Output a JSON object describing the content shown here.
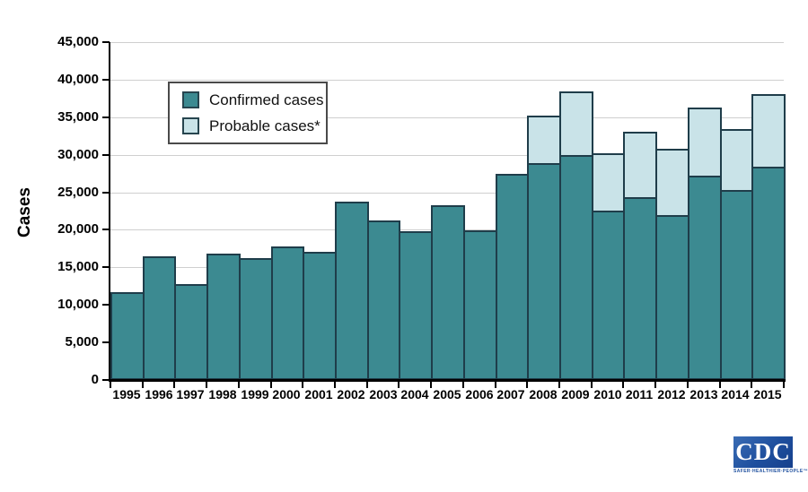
{
  "chart_data": {
    "type": "bar",
    "stacked": true,
    "title": "",
    "xlabel": "",
    "ylabel": "Cases",
    "ylim": [
      0,
      45000
    ],
    "ytick_interval": 5000,
    "ytick_labels": [
      "0",
      "5,000",
      "10,000",
      "15,000",
      "20,000",
      "25,000",
      "30,000",
      "35,000",
      "40,000",
      "45,000"
    ],
    "grid": true,
    "legend_position": "upper-left-inside",
    "categories": [
      "1995",
      "1996",
      "1997",
      "1998",
      "1999",
      "2000",
      "2001",
      "2002",
      "2003",
      "2004",
      "2005",
      "2006",
      "2007",
      "2008",
      "2009",
      "2010",
      "2011",
      "2012",
      "2013",
      "2014",
      "2015"
    ],
    "series": [
      {
        "name": "Confirmed cases",
        "color": "#3c8a91",
        "values": [
          11700,
          16455,
          12801,
          16801,
          16273,
          17730,
          17029,
          23763,
          21273,
          19804,
          23305,
          19931,
          27444,
          28921,
          29959,
          22561,
          24364,
          22014,
          27203,
          25359,
          28453
        ]
      },
      {
        "name": "Probable cases*",
        "color": "#c9e3e8",
        "values": [
          0,
          0,
          0,
          0,
          0,
          0,
          0,
          0,
          0,
          0,
          0,
          0,
          0,
          6277,
          8509,
          7597,
          8733,
          8817,
          9104,
          8150,
          9616
        ]
      }
    ]
  },
  "legend": {
    "items": [
      {
        "label": "Confirmed cases",
        "color": "#3c8a91"
      },
      {
        "label": "Probable cases*",
        "color": "#c9e3e8"
      }
    ]
  },
  "colors": {
    "bar_outline": "#1f3d4a",
    "gridline": "#cfcfcf",
    "axis": "#000000",
    "cdc_blue": "#1e4f9e"
  },
  "logo": {
    "text": "CDC",
    "tagline": "SAFER·HEALTHIER·PEOPLE™"
  }
}
